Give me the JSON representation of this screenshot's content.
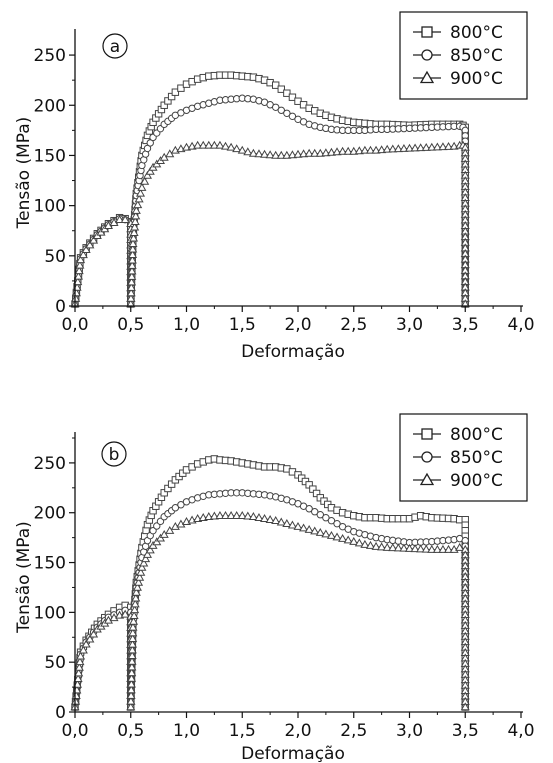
{
  "chart_data": [
    {
      "type": "line",
      "panel_label": "a",
      "xlabel": "Deformação",
      "ylabel": "Tensão (MPa)",
      "xlim": [
        0,
        4
      ],
      "ylim": [
        0,
        270
      ],
      "xticks": [
        "0,0",
        "0,5",
        "1,0",
        "1,5",
        "2,0",
        "2,5",
        "3,0",
        "3,5",
        "4,0"
      ],
      "yticks": [
        "0",
        "50",
        "100",
        "150",
        "200",
        "250"
      ],
      "legend_position": "top-right",
      "grid": false,
      "series": [
        {
          "name": "800°C",
          "marker": "square",
          "x": [
            0.0,
            0.05,
            0.1,
            0.2,
            0.3,
            0.4,
            0.45,
            0.5,
            0.5,
            0.52,
            0.55,
            0.6,
            0.65,
            0.7,
            0.8,
            0.9,
            1.0,
            1.1,
            1.2,
            1.3,
            1.4,
            1.5,
            1.6,
            1.7,
            1.8,
            1.9,
            2.0,
            2.1,
            2.2,
            2.3,
            2.4,
            2.5,
            2.6,
            2.7,
            2.8,
            3.0,
            3.2,
            3.4,
            3.45,
            3.48,
            3.5,
            3.5
          ],
          "y": [
            2,
            48,
            58,
            72,
            82,
            88,
            87,
            84,
            2,
            70,
            112,
            150,
            170,
            183,
            200,
            213,
            221,
            226,
            229,
            230,
            230,
            229,
            228,
            225,
            220,
            212,
            204,
            197,
            192,
            188,
            185,
            183,
            182,
            181,
            181,
            180,
            181,
            181,
            181,
            180,
            178,
            2
          ]
        },
        {
          "name": "850°C",
          "marker": "circle",
          "x": [
            0.0,
            0.05,
            0.1,
            0.2,
            0.3,
            0.4,
            0.45,
            0.5,
            0.5,
            0.52,
            0.55,
            0.6,
            0.65,
            0.7,
            0.8,
            0.9,
            1.0,
            1.1,
            1.2,
            1.3,
            1.4,
            1.5,
            1.6,
            1.7,
            1.8,
            1.9,
            2.0,
            2.1,
            2.2,
            2.3,
            2.4,
            2.5,
            2.6,
            2.7,
            2.8,
            3.0,
            3.2,
            3.4,
            3.45,
            3.48,
            3.5,
            3.5
          ],
          "y": [
            2,
            47,
            57,
            71,
            81,
            87,
            86,
            83,
            2,
            68,
            110,
            140,
            157,
            168,
            181,
            190,
            195,
            199,
            202,
            205,
            206,
            207,
            206,
            203,
            198,
            192,
            186,
            181,
            178,
            176,
            175,
            175,
            175,
            176,
            176,
            177,
            178,
            179,
            179,
            178,
            175,
            2
          ]
        },
        {
          "name": "900°C",
          "marker": "triangle",
          "x": [
            0.0,
            0.05,
            0.1,
            0.2,
            0.3,
            0.4,
            0.45,
            0.5,
            0.5,
            0.52,
            0.55,
            0.6,
            0.65,
            0.7,
            0.8,
            0.9,
            1.0,
            1.1,
            1.2,
            1.3,
            1.4,
            1.5,
            1.6,
            1.7,
            1.8,
            1.9,
            2.0,
            2.1,
            2.2,
            2.3,
            2.4,
            2.5,
            2.6,
            2.7,
            2.8,
            3.0,
            3.2,
            3.4,
            3.45,
            3.48,
            3.5,
            3.5
          ],
          "y": [
            2,
            46,
            56,
            70,
            80,
            86,
            86,
            82,
            2,
            62,
            95,
            118,
            130,
            138,
            148,
            155,
            158,
            160,
            160,
            160,
            158,
            155,
            152,
            151,
            150,
            150,
            151,
            152,
            152,
            153,
            154,
            154,
            155,
            155,
            156,
            157,
            158,
            159,
            160,
            160,
            158,
            2
          ]
        }
      ]
    },
    {
      "type": "line",
      "panel_label": "b",
      "xlabel": "Deformação",
      "ylabel": "Tensão (MPa)",
      "xlim": [
        0,
        4
      ],
      "ylim": [
        0,
        275
      ],
      "xticks": [
        "0,0",
        "0,5",
        "1,0",
        "1,5",
        "2,0",
        "2,5",
        "3,0",
        "3,5",
        "4,0"
      ],
      "yticks": [
        "0",
        "50",
        "100",
        "150",
        "200",
        "250"
      ],
      "legend_position": "top-right",
      "grid": false,
      "series": [
        {
          "name": "800°C",
          "marker": "square",
          "x": [
            0.0,
            0.05,
            0.1,
            0.2,
            0.3,
            0.4,
            0.45,
            0.5,
            0.5,
            0.52,
            0.55,
            0.6,
            0.65,
            0.7,
            0.8,
            0.9,
            1.0,
            1.1,
            1.2,
            1.25,
            1.3,
            1.4,
            1.5,
            1.6,
            1.7,
            1.8,
            1.9,
            2.0,
            2.1,
            2.2,
            2.3,
            2.4,
            2.5,
            2.6,
            2.7,
            2.8,
            3.0,
            3.1,
            3.2,
            3.4,
            3.45,
            3.5,
            3.5
          ],
          "y": [
            5,
            60,
            72,
            88,
            98,
            105,
            107,
            105,
            5,
            90,
            130,
            165,
            188,
            202,
            220,
            233,
            243,
            249,
            253,
            254,
            253,
            252,
            250,
            248,
            246,
            246,
            244,
            238,
            228,
            215,
            205,
            200,
            197,
            195,
            195,
            194,
            194,
            197,
            195,
            194,
            193,
            193,
            5
          ]
        },
        {
          "name": "850°C",
          "marker": "circle",
          "x": [
            0.0,
            0.05,
            0.1,
            0.2,
            0.3,
            0.4,
            0.45,
            0.5,
            0.5,
            0.52,
            0.55,
            0.6,
            0.65,
            0.7,
            0.8,
            0.9,
            1.0,
            1.1,
            1.2,
            1.3,
            1.4,
            1.5,
            1.6,
            1.7,
            1.8,
            1.9,
            2.0,
            2.1,
            2.2,
            2.3,
            2.4,
            2.5,
            2.6,
            2.7,
            2.8,
            3.0,
            3.2,
            3.4,
            3.45,
            3.5,
            3.5
          ],
          "y": [
            5,
            58,
            70,
            85,
            95,
            100,
            102,
            100,
            5,
            88,
            125,
            155,
            172,
            182,
            196,
            205,
            211,
            215,
            218,
            219,
            220,
            220,
            219,
            218,
            216,
            213,
            209,
            204,
            198,
            192,
            186,
            181,
            178,
            175,
            173,
            170,
            171,
            173,
            174,
            172,
            5
          ]
        },
        {
          "name": "900°C",
          "marker": "triangle",
          "x": [
            0.0,
            0.05,
            0.1,
            0.2,
            0.3,
            0.4,
            0.45,
            0.5,
            0.5,
            0.52,
            0.55,
            0.6,
            0.65,
            0.7,
            0.8,
            0.9,
            1.0,
            1.1,
            1.2,
            1.3,
            1.4,
            1.5,
            1.6,
            1.7,
            1.8,
            1.9,
            2.0,
            2.1,
            2.2,
            2.3,
            2.4,
            2.5,
            2.6,
            2.7,
            2.8,
            3.0,
            3.2,
            3.4,
            3.45,
            3.5,
            3.5
          ],
          "y": [
            5,
            56,
            68,
            83,
            92,
            97,
            98,
            96,
            5,
            85,
            120,
            145,
            158,
            167,
            178,
            186,
            191,
            194,
            196,
            197,
            197,
            197,
            196,
            194,
            192,
            189,
            186,
            183,
            180,
            177,
            174,
            171,
            168,
            166,
            165,
            164,
            163,
            163,
            165,
            163,
            5
          ]
        }
      ]
    }
  ]
}
